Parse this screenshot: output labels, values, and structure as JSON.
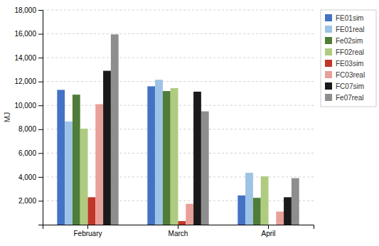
{
  "chart_data": {
    "type": "bar",
    "categories": [
      "February",
      "March",
      "April"
    ],
    "series": [
      {
        "name": "FE01sim",
        "color": "#4472C4",
        "values": [
          11300,
          11600,
          2450
        ]
      },
      {
        "name": "FE01real",
        "color": "#9DC3E6",
        "values": [
          8650,
          12150,
          4350
        ]
      },
      {
        "name": "Fe02sim",
        "color": "#4F7D37",
        "values": [
          10900,
          11200,
          2250
        ]
      },
      {
        "name": "FF02real",
        "color": "#AECB80",
        "values": [
          8050,
          11450,
          4050
        ]
      },
      {
        "name": "FE03sim",
        "color": "#C0372A",
        "values": [
          2300,
          300,
          0
        ]
      },
      {
        "name": "FC03real",
        "color": "#E8A09A",
        "values": [
          10100,
          1750,
          1100
        ]
      },
      {
        "name": "FC07sim",
        "color": "#1A1A1A",
        "values": [
          12900,
          11150,
          2300
        ]
      },
      {
        "name": "Fe07real",
        "color": "#8E8E8E",
        "values": [
          15950,
          9500,
          3900
        ]
      }
    ],
    "y_label": "MJ",
    "ylim": [
      0,
      18000
    ],
    "yticks": [
      {
        "value": 2000,
        "label": "2,000"
      },
      {
        "value": 4000,
        "label": "4,000"
      },
      {
        "value": 6000,
        "label": "6,000"
      },
      {
        "value": 8000,
        "label": "8,000"
      },
      {
        "value": 10000,
        "label": "10,000"
      },
      {
        "value": 12000,
        "label": "12,000"
      },
      {
        "value": 14000,
        "label": "14,000"
      },
      {
        "value": 16000,
        "label": "16,000"
      },
      {
        "value": 18000,
        "label": "18,000"
      }
    ],
    "grid": true,
    "legend": "right"
  }
}
